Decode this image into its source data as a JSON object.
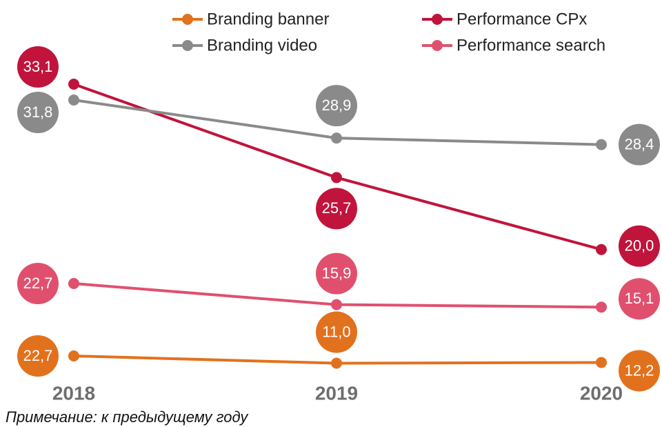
{
  "chart_data": {
    "type": "line",
    "categories": [
      "2018",
      "2019",
      "2020"
    ],
    "series": [
      {
        "name": "Branding banner",
        "color": "#e2711d",
        "values": [
          22.7,
          11.0,
          12.2
        ],
        "value_labels": [
          "22,7",
          "11,0",
          "12,2"
        ]
      },
      {
        "name": "Performance CPx",
        "color": "#c0143c",
        "values": [
          33.1,
          25.7,
          20.0
        ],
        "value_labels": [
          "33,1",
          "25,7",
          "20,0"
        ]
      },
      {
        "name": "Branding video",
        "color": "#8a8a8a",
        "values": [
          31.8,
          28.9,
          28.4
        ],
        "value_labels": [
          "31,8",
          "28,9",
          "28,4"
        ]
      },
      {
        "name": "Performance search",
        "color": "#e0506e",
        "values": [
          22.7,
          15.9,
          15.1
        ],
        "value_labels": [
          "22,7",
          "15,9",
          "15,1"
        ]
      }
    ],
    "note": "Примечание: к предыдущему году"
  }
}
